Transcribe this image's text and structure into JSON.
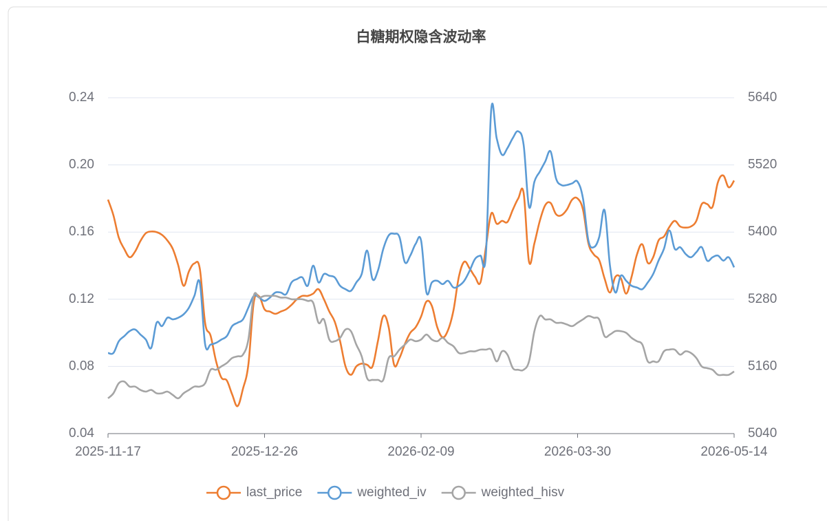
{
  "chart_data": {
    "type": "line",
    "title": "白糖期权隐含波动率",
    "categories": [
      "2025-11-17",
      "2025-11-18",
      "2025-11-19",
      "2025-11-20",
      "2025-11-21",
      "2025-11-24",
      "2025-11-25",
      "2025-11-26",
      "2025-11-27",
      "2025-11-28",
      "2025-12-01",
      "2025-12-02",
      "2025-12-03",
      "2025-12-04",
      "2025-12-05",
      "2025-12-08",
      "2025-12-09",
      "2025-12-10",
      "2025-12-11",
      "2025-12-12",
      "2025-12-15",
      "2025-12-16",
      "2025-12-17",
      "2025-12-18",
      "2025-12-19",
      "2025-12-22",
      "2025-12-23",
      "2025-12-24",
      "2025-12-25",
      "2025-12-26",
      "2025-12-29",
      "2025-12-30",
      "2025-12-31",
      "2026-01-05",
      "2026-01-06",
      "2026-01-07",
      "2026-01-08",
      "2026-01-09",
      "2026-01-12",
      "2026-01-13",
      "2026-01-14",
      "2026-01-15",
      "2026-01-16",
      "2026-01-19",
      "2026-01-20",
      "2026-01-21",
      "2026-01-22",
      "2026-01-23",
      "2026-01-26",
      "2026-01-27",
      "2026-01-28",
      "2026-01-29",
      "2026-01-30",
      "2026-02-02",
      "2026-02-03",
      "2026-02-04",
      "2026-02-05",
      "2026-02-06",
      "2026-02-09",
      "2026-02-10",
      "2026-02-11",
      "2026-02-12",
      "2026-02-13",
      "2026-02-24",
      "2026-02-25",
      "2026-02-26",
      "2026-02-27",
      "2026-03-02",
      "2026-03-03",
      "2026-03-04",
      "2026-03-05",
      "2026-03-06",
      "2026-03-09",
      "2026-03-10",
      "2026-03-11",
      "2026-03-12",
      "2026-03-13",
      "2026-03-16",
      "2026-03-17",
      "2026-03-18",
      "2026-03-19",
      "2026-03-20",
      "2026-03-23",
      "2026-03-24",
      "2026-03-25",
      "2026-03-26",
      "2026-03-27",
      "2026-03-30",
      "2026-03-31",
      "2026-04-01",
      "2026-04-02",
      "2026-04-03",
      "2026-04-07",
      "2026-04-08",
      "2026-04-09",
      "2026-04-10",
      "2026-04-13",
      "2026-04-14",
      "2026-04-15",
      "2026-04-16",
      "2026-04-17",
      "2026-04-20",
      "2026-04-21",
      "2026-04-22",
      "2026-04-23",
      "2026-04-24",
      "2026-04-27",
      "2026-04-28",
      "2026-04-29",
      "2026-04-30",
      "2026-05-06",
      "2026-05-07",
      "2026-05-08",
      "2026-05-11",
      "2026-05-12",
      "2026-05-13",
      "2026-05-14"
    ],
    "xticks": [
      "2025-11-17",
      "2025-12-26",
      "2026-02-09",
      "2026-03-30",
      "2026-05-14"
    ],
    "series": [
      {
        "name": "last_price",
        "color": "#ed7d31",
        "axis": "y2",
        "values": [
          5458,
          5430,
          5390,
          5370,
          5355,
          5365,
          5384,
          5398,
          5401,
          5400,
          5395,
          5385,
          5370,
          5341,
          5304,
          5330,
          5344,
          5335,
          5237,
          5215,
          5170,
          5140,
          5135,
          5110,
          5089,
          5120,
          5163,
          5274,
          5285,
          5262,
          5258,
          5254,
          5258,
          5262,
          5270,
          5280,
          5286,
          5286,
          5290,
          5298,
          5280,
          5258,
          5240,
          5205,
          5160,
          5145,
          5160,
          5165,
          5163,
          5160,
          5205,
          5250,
          5230,
          5163,
          5175,
          5200,
          5220,
          5230,
          5249,
          5276,
          5268,
          5230,
          5212,
          5225,
          5260,
          5320,
          5347,
          5335,
          5320,
          5310,
          5372,
          5433,
          5415,
          5420,
          5418,
          5440,
          5460,
          5470,
          5347,
          5380,
          5420,
          5448,
          5452,
          5432,
          5430,
          5440,
          5458,
          5460,
          5440,
          5380,
          5360,
          5350,
          5317,
          5292,
          5320,
          5318,
          5290,
          5320,
          5360,
          5378,
          5345,
          5355,
          5385,
          5392,
          5409,
          5420,
          5410,
          5408,
          5410,
          5420,
          5450,
          5450,
          5445,
          5489,
          5501,
          5480,
          5492
        ]
      },
      {
        "name": "weighted_iv",
        "color": "#5b9bd5",
        "values": [
          0.088,
          0.088,
          0.095,
          0.098,
          0.101,
          0.102,
          0.099,
          0.096,
          0.091,
          0.106,
          0.104,
          0.109,
          0.108,
          0.109,
          0.111,
          0.115,
          0.122,
          0.13,
          0.093,
          0.093,
          0.094,
          0.096,
          0.098,
          0.104,
          0.106,
          0.108,
          0.115,
          0.122,
          0.121,
          0.119,
          0.121,
          0.124,
          0.124,
          0.123,
          0.13,
          0.132,
          0.133,
          0.128,
          0.14,
          0.13,
          0.135,
          0.134,
          0.133,
          0.128,
          0.126,
          0.125,
          0.13,
          0.135,
          0.149,
          0.132,
          0.137,
          0.15,
          0.158,
          0.159,
          0.157,
          0.142,
          0.146,
          0.153,
          0.155,
          0.124,
          0.13,
          0.131,
          0.129,
          0.131,
          0.127,
          0.128,
          0.131,
          0.137,
          0.144,
          0.146,
          0.146,
          0.233,
          0.216,
          0.206,
          0.21,
          0.216,
          0.22,
          0.212,
          0.175,
          0.19,
          0.196,
          0.202,
          0.208,
          0.192,
          0.188,
          0.188,
          0.189,
          0.19,
          0.18,
          0.155,
          0.151,
          0.157,
          0.173,
          0.14,
          0.124,
          0.134,
          0.131,
          0.128,
          0.127,
          0.126,
          0.13,
          0.135,
          0.143,
          0.15,
          0.161,
          0.15,
          0.151,
          0.147,
          0.145,
          0.148,
          0.151,
          0.143,
          0.145,
          0.146,
          0.143,
          0.145,
          0.139
        ]
      },
      {
        "name": "weighted_hisv",
        "color": "#a5a5a5",
        "values": [
          0.061,
          0.064,
          0.07,
          0.071,
          0.068,
          0.068,
          0.066,
          0.065,
          0.066,
          0.064,
          0.064,
          0.065,
          0.063,
          0.061,
          0.064,
          0.066,
          0.068,
          0.068,
          0.07,
          0.078,
          0.078,
          0.08,
          0.082,
          0.085,
          0.086,
          0.087,
          0.096,
          0.122,
          0.121,
          0.122,
          0.122,
          0.122,
          0.121,
          0.121,
          0.12,
          0.12,
          0.12,
          0.119,
          0.118,
          0.106,
          0.108,
          0.096,
          0.095,
          0.097,
          0.102,
          0.101,
          0.093,
          0.086,
          0.073,
          0.072,
          0.072,
          0.072,
          0.085,
          0.086,
          0.09,
          0.093,
          0.096,
          0.095,
          0.096,
          0.099,
          0.096,
          0.095,
          0.097,
          0.094,
          0.092,
          0.088,
          0.088,
          0.089,
          0.089,
          0.09,
          0.09,
          0.09,
          0.083,
          0.089,
          0.087,
          0.079,
          0.078,
          0.078,
          0.083,
          0.101,
          0.11,
          0.108,
          0.108,
          0.106,
          0.106,
          0.105,
          0.104,
          0.106,
          0.108,
          0.11,
          0.109,
          0.108,
          0.098,
          0.099,
          0.101,
          0.101,
          0.1,
          0.097,
          0.095,
          0.093,
          0.083,
          0.083,
          0.083,
          0.089,
          0.09,
          0.09,
          0.087,
          0.089,
          0.088,
          0.085,
          0.08,
          0.079,
          0.078,
          0.075,
          0.075,
          0.075,
          0.077
        ]
      }
    ],
    "ylim": [
      0.04,
      0.24
    ],
    "yticks": [
      0.04,
      0.08,
      0.12,
      0.16,
      {
        "value": 0.2,
        "label": "0.20"
      },
      0.24
    ],
    "y2lim": [
      5040,
      5640
    ],
    "y2ticks": [
      5040,
      5160,
      5280,
      5400,
      5520,
      5640
    ],
    "grid": true,
    "legend": "bottom"
  }
}
